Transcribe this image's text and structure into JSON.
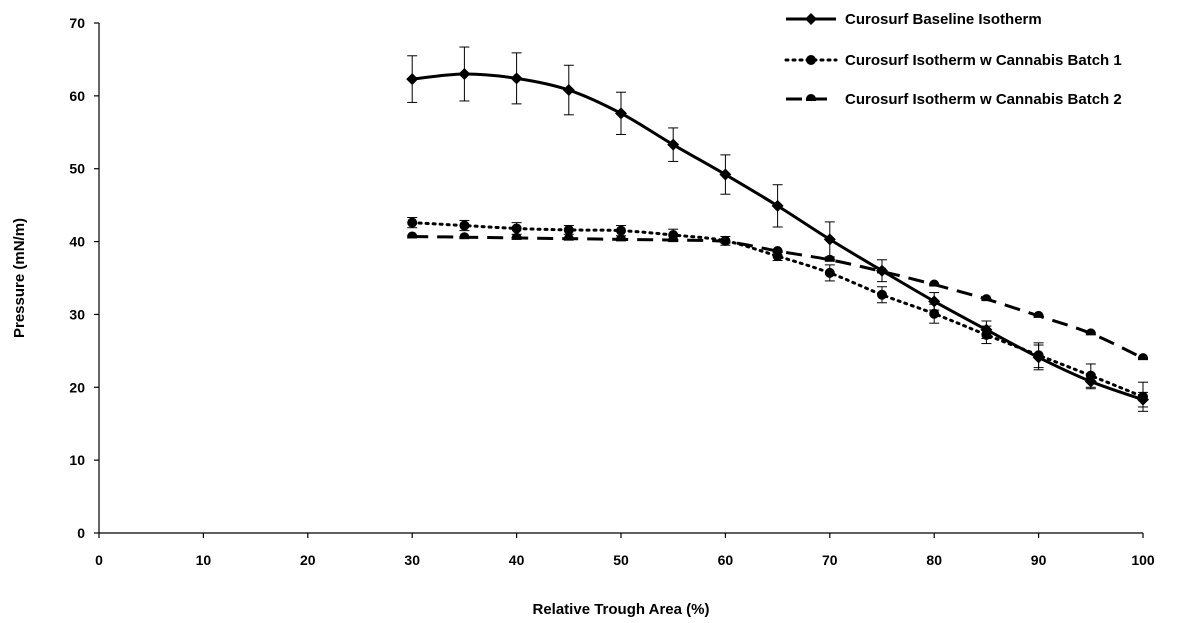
{
  "chart_data": {
    "type": "line",
    "title": "",
    "xlabel": "Relative Trough Area (%)",
    "ylabel": "Pressure (mN/m)",
    "xlim": [
      0,
      100
    ],
    "ylim": [
      0,
      70
    ],
    "xticks": [
      0,
      10,
      20,
      30,
      40,
      50,
      60,
      70,
      80,
      90,
      100
    ],
    "yticks": [
      0,
      10,
      20,
      30,
      40,
      50,
      60,
      70
    ],
    "grid": false,
    "legend_position": "top-right",
    "series": [
      {
        "name": "Curosurf Baseline Isotherm",
        "style": "solid",
        "marker": "diamond",
        "color": "#000000",
        "x": [
          30,
          35,
          40,
          45,
          50,
          55,
          60,
          65,
          70,
          75,
          80,
          85,
          90,
          95,
          100
        ],
        "y": [
          62.3,
          63.0,
          62.4,
          60.8,
          57.6,
          53.3,
          49.2,
          44.9,
          40.3,
          36.0,
          31.8,
          27.9,
          24.1,
          20.8,
          18.3
        ],
        "error": [
          3.2,
          3.7,
          3.5,
          3.4,
          2.9,
          2.3,
          2.7,
          2.9,
          2.4,
          1.5,
          1.2,
          1.2,
          1.7,
          1.0,
          1.0
        ]
      },
      {
        "name": "Curosurf Isotherm w Cannabis Batch 1",
        "style": "dotted",
        "marker": "circle",
        "color": "#000000",
        "x": [
          30,
          35,
          40,
          45,
          50,
          55,
          60,
          65,
          70,
          75,
          80,
          85,
          90,
          95,
          100
        ],
        "y": [
          42.6,
          42.2,
          41.8,
          41.6,
          41.5,
          40.9,
          40.1,
          38.0,
          35.7,
          32.7,
          30.1,
          27.2,
          24.4,
          21.6,
          18.7
        ],
        "error": [
          0.7,
          0.7,
          0.8,
          0.6,
          0.7,
          0.8,
          0.6,
          0.6,
          1.1,
          1.1,
          1.3,
          1.2,
          1.7,
          1.6,
          2.0
        ]
      },
      {
        "name": "Curosurf Isotherm w Cannabis Batch 2",
        "style": "dashed",
        "marker": "semicircle",
        "color": "#000000",
        "x": [
          30,
          35,
          40,
          45,
          50,
          55,
          60,
          65,
          70,
          75,
          80,
          85,
          90,
          95,
          100
        ],
        "y": [
          40.7,
          40.6,
          40.5,
          40.4,
          40.3,
          40.2,
          40.0,
          38.7,
          37.5,
          35.9,
          34.1,
          32.1,
          29.8,
          27.4,
          24.0
        ],
        "error": [
          0,
          0,
          0,
          0,
          0,
          0,
          0,
          0,
          0,
          0,
          0,
          0,
          0,
          0,
          0
        ]
      }
    ]
  }
}
